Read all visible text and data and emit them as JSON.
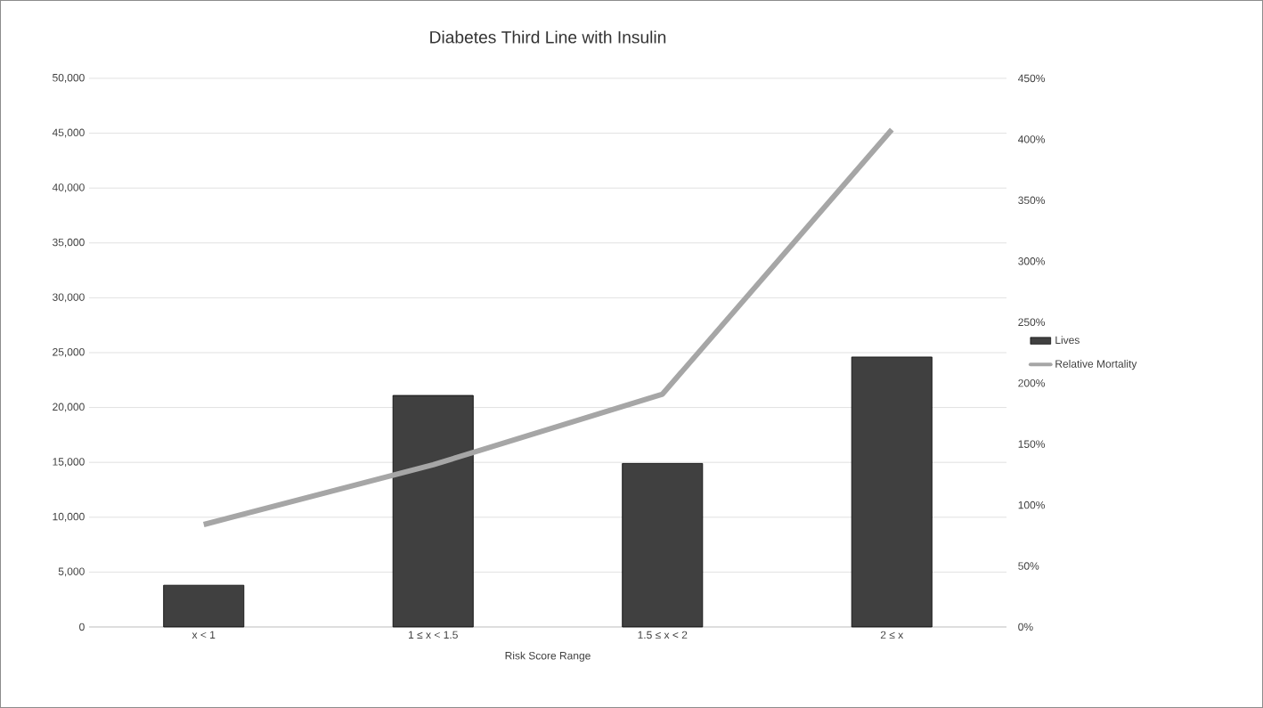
{
  "chart_data": {
    "type": "bar",
    "title": "Diabetes Third Line with Insulin",
    "xlabel": "Risk Score Range",
    "categories": [
      "x < 1",
      "1 ≤ x < 1.5",
      "1.5 ≤ x < 2",
      "2 ≤ x"
    ],
    "series": [
      {
        "name": "Lives",
        "color": "#404040",
        "values": [
          3800,
          21100,
          14900,
          24600
        ]
      },
      {
        "name": "Relative Mortality",
        "type": "line",
        "axis": "y2",
        "color": "#a6a6a6",
        "values": [
          84,
          133,
          191,
          408
        ]
      }
    ],
    "ylim": [
      0,
      50000
    ],
    "yticks": [
      {
        "value": 0,
        "label": "0"
      },
      {
        "value": 5000,
        "label": "5,000"
      },
      {
        "value": 10000,
        "label": "10,000"
      },
      {
        "value": 15000,
        "label": "15,000"
      },
      {
        "value": 20000,
        "label": "20,000"
      },
      {
        "value": 25000,
        "label": "25,000"
      },
      {
        "value": 30000,
        "label": "30,000"
      },
      {
        "value": 35000,
        "label": "35,000"
      },
      {
        "value": 40000,
        "label": "40,000"
      },
      {
        "value": 45000,
        "label": "45,000"
      },
      {
        "value": 50000,
        "label": "50,000"
      }
    ],
    "y2lim": [
      0,
      450
    ],
    "y2ticks": [
      {
        "value": 0,
        "label": "0%"
      },
      {
        "value": 50,
        "label": "50%"
      },
      {
        "value": 100,
        "label": "100%"
      },
      {
        "value": 150,
        "label": "150%"
      },
      {
        "value": 200,
        "label": "200%"
      },
      {
        "value": 250,
        "label": "250%"
      },
      {
        "value": 300,
        "label": "300%"
      },
      {
        "value": 350,
        "label": "350%"
      },
      {
        "value": 400,
        "label": "400%"
      },
      {
        "value": 450,
        "label": "450%"
      }
    ],
    "grid": "y",
    "legend": "right"
  }
}
